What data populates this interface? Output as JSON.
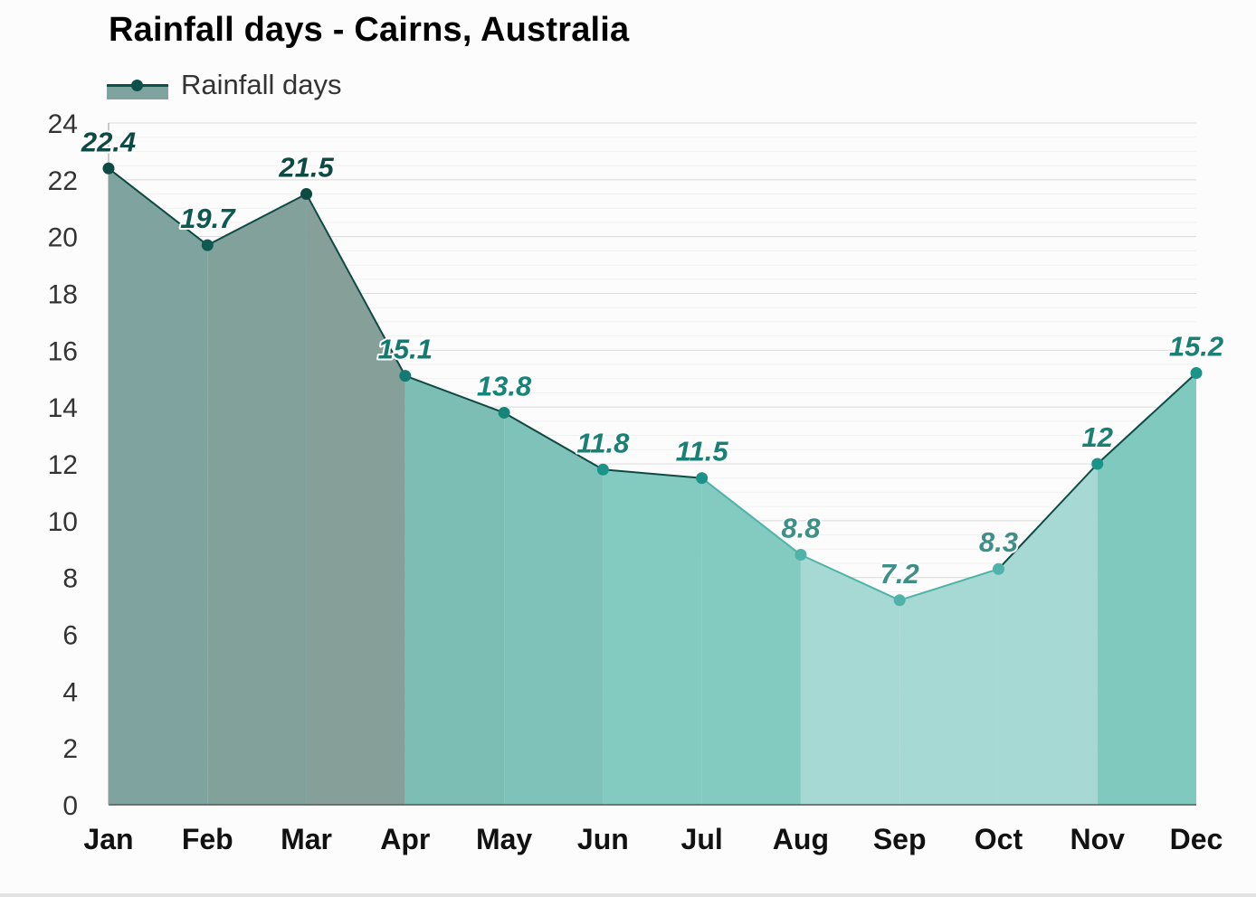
{
  "chart_data": {
    "type": "area",
    "title": "Rainfall days - Cairns, Australia",
    "xlabel": "",
    "ylabel": "",
    "categories": [
      "Jan",
      "Feb",
      "Mar",
      "Apr",
      "May",
      "Jun",
      "Jul",
      "Aug",
      "Sep",
      "Oct",
      "Nov",
      "Dec"
    ],
    "series": [
      {
        "name": "Rainfall days",
        "values": [
          22.4,
          19.7,
          21.5,
          15.1,
          13.8,
          11.8,
          11.5,
          8.8,
          7.2,
          8.3,
          12,
          15.2
        ]
      }
    ],
    "data_labels": [
      "22.4",
      "19.7",
      "21.5",
      "15.1",
      "13.8",
      "11.8",
      "11.5",
      "8.8",
      "7.2",
      "8.3",
      "12",
      "15.2"
    ],
    "y_ticks": [
      "0",
      "2",
      "4",
      "6",
      "8",
      "10",
      "12",
      "14",
      "16",
      "18",
      "20",
      "22",
      "24"
    ],
    "ylim": [
      0,
      24
    ],
    "grid": true,
    "legend": "top-left",
    "colors": {
      "fills": [
        "#7fa49f",
        "#83a19b",
        "#869f99",
        "#7cbdb4",
        "#7fc2b9",
        "#83cac0",
        "#83cac0",
        "#a6d9d4",
        "#a6d9d4",
        "#a6d9d4",
        "#80c9bf",
        "#7cc3b9"
      ],
      "points": [
        "#0d4a44",
        "#0d5a52",
        "#0d4a44",
        "#127a70",
        "#15857a",
        "#1a9488",
        "#1a9488",
        "#4fb3a9",
        "#4fb3a9",
        "#4fb3a9",
        "#1a9488",
        "#1a9488"
      ],
      "labels": [
        "#0d4a44",
        "#0d5a52",
        "#0d4a44",
        "#127a70",
        "#15857a",
        "#1a8076",
        "#1a8076",
        "#3d8f87",
        "#3d8f87",
        "#3d8f87",
        "#1a8076",
        "#1a8076"
      ],
      "line_dark": "#0d4a44",
      "line_light": "#4fb3a9"
    }
  }
}
